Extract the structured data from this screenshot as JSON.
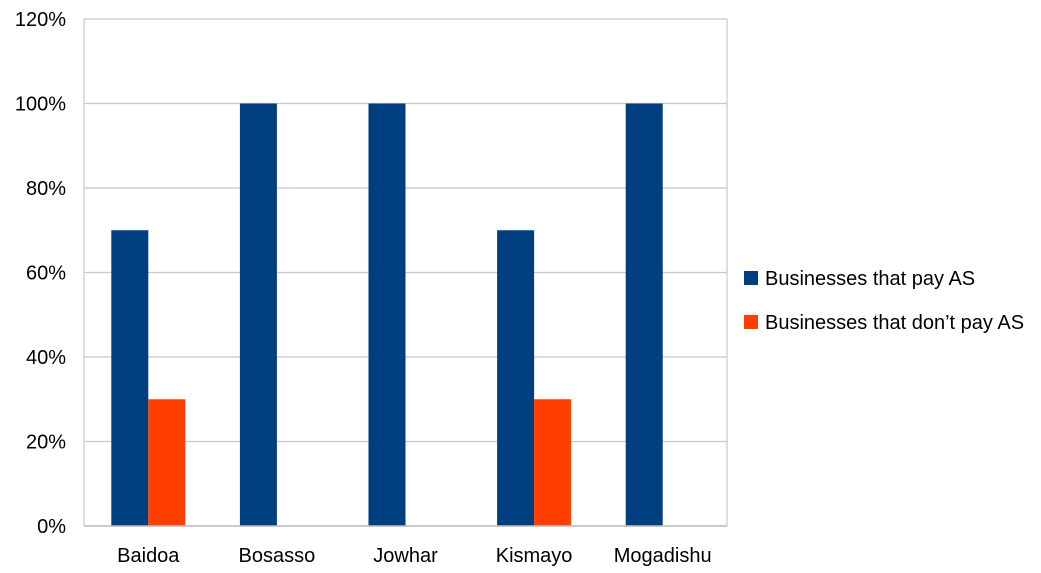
{
  "chart_data": {
    "type": "bar",
    "title": "",
    "xlabel": "",
    "ylabel": "",
    "categories": [
      "Baidoa",
      "Bosasso",
      "Jowhar",
      "Kismayo",
      "Mogadishu"
    ],
    "series": [
      {
        "name": "Businesses that pay AS",
        "color": "#003F7F",
        "values": [
          70,
          100,
          100,
          70,
          100
        ]
      },
      {
        "name": "Businesses that don’t pay AS",
        "color": "#FF3F00",
        "values": [
          30,
          0,
          0,
          30,
          0
        ]
      }
    ],
    "ylim": [
      0,
      120
    ],
    "yticks": [
      "0%",
      "20%",
      "40%",
      "60%",
      "80%",
      "100%",
      "120%"
    ],
    "grid": true,
    "legend_position": "right"
  }
}
